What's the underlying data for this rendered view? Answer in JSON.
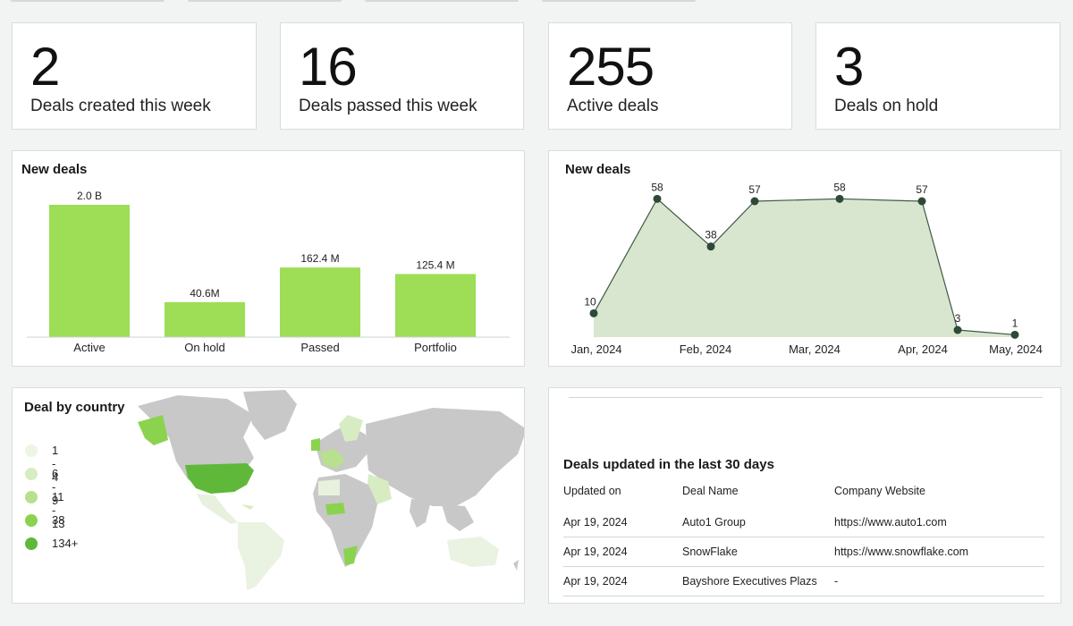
{
  "kpis": [
    {
      "value": "2",
      "label": "Deals created this week"
    },
    {
      "value": "16",
      "label": "Deals passed this week"
    },
    {
      "value": "255",
      "label": "Active deals"
    },
    {
      "value": "3",
      "label": "Deals  on hold"
    }
  ],
  "bar_panel": {
    "title": "New deals"
  },
  "line_panel": {
    "title": "New deals"
  },
  "map_panel": {
    "title": "Deal by country",
    "legend": [
      {
        "label": "1 - 4",
        "color": "#edf5e3"
      },
      {
        "label": "6 - 9",
        "color": "#d7ecc3"
      },
      {
        "label": "11 - 13",
        "color": "#b8e08e"
      },
      {
        "label": "38",
        "color": "#8bd34f"
      },
      {
        "label": "134+",
        "color": "#5fb83a"
      }
    ]
  },
  "table_panel": {
    "title": "Deals updated in the last 30 days",
    "columns": [
      "Updated on",
      "Deal Name",
      "Company Website"
    ],
    "rows": [
      [
        "Apr 19, 2024",
        "Auto1 Group",
        "https://www.auto1.com"
      ],
      [
        "Apr 19, 2024",
        "SnowFlake",
        "https://www.snowflake.com"
      ],
      [
        "Apr 19, 2024",
        "Bayshore Executives Plazs",
        "-"
      ]
    ]
  },
  "colors": {
    "bar": "#9edd56",
    "line_fill": "#d8e6cf",
    "line_stroke": "#3e5a45",
    "point": "#2e4a37",
    "map_base": "#c8c8c8"
  },
  "chart_data": [
    {
      "type": "bar",
      "title": "New deals",
      "categories": [
        "Active",
        "On hold",
        "Passed",
        "Portfolio"
      ],
      "values": [
        2000000000,
        40600000,
        162400000,
        125400000
      ],
      "data_labels": [
        "2.0 B",
        "40.6M",
        "162.4 M",
        "125.4 M"
      ]
    },
    {
      "type": "area",
      "title": "New deals",
      "x": [
        "Jan, 2024",
        "Jan, 2024 (mid)",
        "Feb, 2024",
        "Feb, 2024 (mid)",
        "Mar, 2024",
        "Apr, 2024",
        "Apr, 2024 (mid)",
        "May, 2024"
      ],
      "values": [
        10,
        58,
        38,
        57,
        58,
        57,
        3,
        1
      ],
      "xticks": [
        "Jan, 2024",
        "Feb, 2024",
        "Mar, 2024",
        "Apr, 2024",
        "May, 2024"
      ],
      "ylim": [
        0,
        60
      ]
    }
  ]
}
